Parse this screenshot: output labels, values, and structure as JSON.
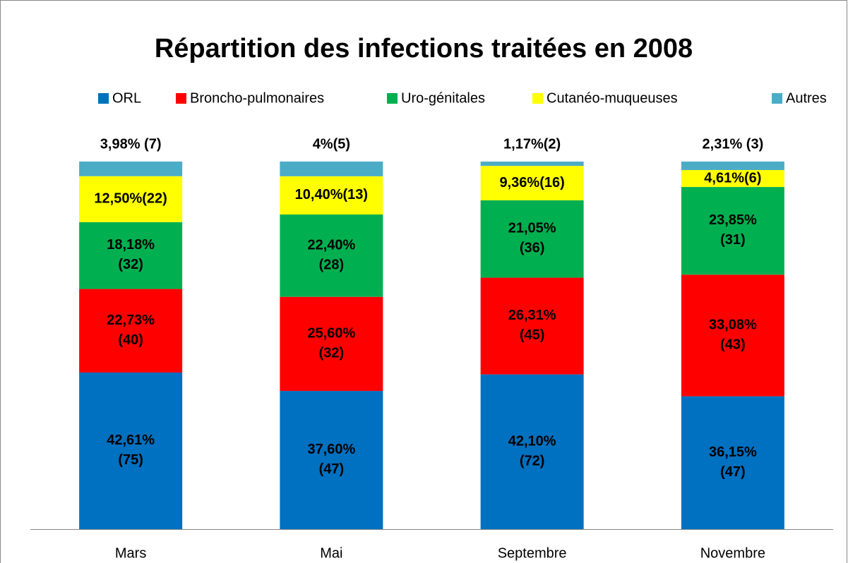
{
  "chart_data": {
    "type": "stacked_bar",
    "title": "Répartition des infections traitées en 2008",
    "categories": [
      "Mars",
      "Mai",
      "Septembre",
      "Novembre"
    ],
    "ylim": [
      0,
      100
    ],
    "legend": "top",
    "series": [
      {
        "name": "ORL",
        "color": "#0070C0",
        "values": [
          42.61,
          37.6,
          42.1,
          36.15
        ],
        "value_labels": [
          "42,61% (75)",
          "37,60% (47)",
          "42,10% (72)",
          "36,15% (47)"
        ]
      },
      {
        "name": "Broncho-pulmonaires",
        "color": "#FF0000",
        "values": [
          22.73,
          25.6,
          26.31,
          33.08
        ],
        "value_labels": [
          "22,73% (40)",
          "25,60% (32)",
          "26,31% (45)",
          "33,08% (43)"
        ]
      },
      {
        "name": "Uro-génitales",
        "color": "#00B050",
        "values": [
          18.18,
          22.4,
          21.05,
          23.85
        ],
        "value_labels": [
          "18,18% (32)",
          "22,40% (28)",
          "21,05% (36)",
          "23,85% (31)"
        ]
      },
      {
        "name": "Cutanéo-muqueuses",
        "color": "#FFFF00",
        "values": [
          12.5,
          10.4,
          9.36,
          4.61
        ],
        "value_labels": [
          "12,50%(22)",
          "10,40%(13)",
          "9,36%(16)",
          "4,61%(6)"
        ]
      },
      {
        "name": "Autres",
        "color": "#4BACC6",
        "values": [
          3.98,
          4,
          1.17,
          2.31
        ],
        "value_labels": [
          "3,98% (7)",
          "4%(5)",
          "1,17%(2)",
          "2,31% (3)"
        ]
      }
    ]
  }
}
